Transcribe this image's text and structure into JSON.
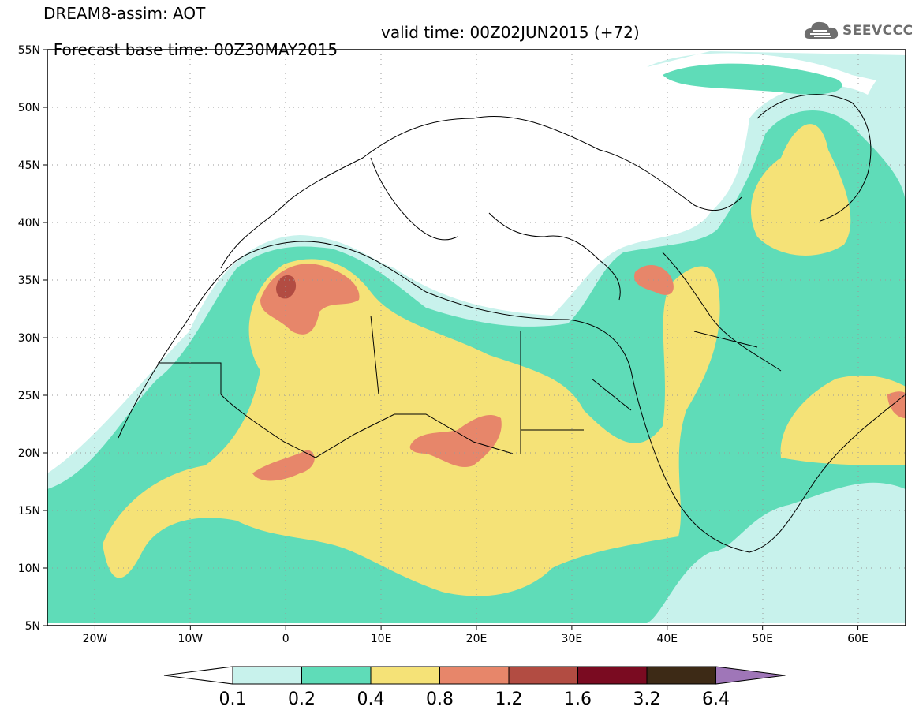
{
  "header": {
    "line1": "DREAM8-assim: AOT",
    "forecast": "Forecast base time: 00Z30MAY2015",
    "valid": "valid time: 00Z02JUN2015 (+72)"
  },
  "logo": {
    "text": "SEEVCCC",
    "icon": "cloud-logo-icon",
    "color": "#6e6e6e"
  },
  "axes": {
    "lat_labels": [
      "55N",
      "50N",
      "45N",
      "40N",
      "35N",
      "30N",
      "25N",
      "20N",
      "15N",
      "10N",
      "5N"
    ],
    "lat_values": [
      55,
      50,
      45,
      40,
      35,
      30,
      25,
      20,
      15,
      10,
      5
    ],
    "lon_labels": [
      "20W",
      "10W",
      "0",
      "10E",
      "20E",
      "30E",
      "40E",
      "50E",
      "60E"
    ],
    "lon_values": [
      -20,
      -10,
      0,
      10,
      20,
      30,
      40,
      50,
      60
    ],
    "lon_range": [
      -25,
      65
    ],
    "lat_range": [
      5,
      55
    ],
    "grid": "dotted"
  },
  "colorbar": {
    "labels": [
      "0.1",
      "0.2",
      "0.4",
      "0.8",
      "1.2",
      "1.6",
      "3.2",
      "6.4"
    ],
    "colors": [
      "#ffffff",
      "#c8f2ec",
      "#5fdcb8",
      "#f5e277",
      "#e7866a",
      "#b24c42",
      "#7a0b21",
      "#3d2a16",
      "#9f76b8"
    ]
  }
}
